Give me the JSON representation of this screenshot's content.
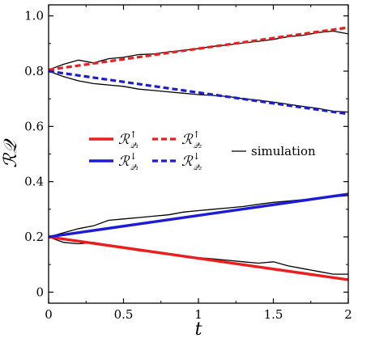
{
  "chart_data": {
    "type": "line",
    "xlabel": "t",
    "ylabel": "ℛ𝒬",
    "xlim": [
      0,
      2
    ],
    "ylim": [
      -0.04,
      1.04
    ],
    "xticks": [
      0,
      0.5,
      1,
      1.5,
      2
    ],
    "xtick_labels": [
      "0",
      "0.5",
      "1",
      "1.5",
      "2"
    ],
    "yticks": [
      0,
      0.2,
      0.4,
      0.6,
      0.8,
      1.0
    ],
    "ytick_labels": [
      "0",
      "0.2",
      "0.4",
      "0.6",
      "0.8",
      "1.0"
    ],
    "grid": false,
    "legend_position": "center-left",
    "series": [
      {
        "id": "r-up-q1",
        "legend_base": "ℛ",
        "legend_sup": "↑",
        "legend_sub": "𝒬₁",
        "color": "#ee1c1c",
        "style": "solid",
        "x": [
          0,
          2
        ],
        "y": [
          0.2,
          0.045
        ]
      },
      {
        "id": "r-up-q2",
        "legend_base": "ℛ",
        "legend_sup": "↑",
        "legend_sub": "𝒬₂",
        "color": "#ee1c1c",
        "style": "dashed",
        "x": [
          0,
          2
        ],
        "y": [
          0.805,
          0.958
        ]
      },
      {
        "id": "r-down-q1",
        "legend_base": "ℛ",
        "legend_sup": "↓",
        "legend_sub": "𝒬₁",
        "color": "#1c1cd6",
        "style": "solid",
        "x": [
          0,
          2
        ],
        "y": [
          0.2,
          0.355
        ]
      },
      {
        "id": "r-down-q2",
        "legend_base": "ℛ",
        "legend_sup": "↓",
        "legend_sub": "𝒬₂",
        "color": "#1c1cd6",
        "style": "dashed",
        "x": [
          0,
          2
        ],
        "y": [
          0.8,
          0.645
        ]
      },
      {
        "id": "simulation",
        "legend_label": "simulation",
        "color": "#000000",
        "style": "thin",
        "paths": [
          {
            "x": [
              0,
              0.1,
              0.2,
              0.3,
              0.4,
              0.5,
              0.6,
              0.7,
              0.8,
              0.9,
              1.0,
              1.1,
              1.2,
              1.3,
              1.4,
              1.5,
              1.6,
              1.7,
              1.8,
              1.9,
              2.0
            ],
            "y": [
              0.805,
              0.825,
              0.84,
              0.83,
              0.845,
              0.85,
              0.86,
              0.862,
              0.87,
              0.875,
              0.882,
              0.89,
              0.895,
              0.902,
              0.908,
              0.915,
              0.925,
              0.93,
              0.94,
              0.945,
              0.935
            ]
          },
          {
            "x": [
              0,
              0.1,
              0.2,
              0.3,
              0.4,
              0.5,
              0.6,
              0.7,
              0.8,
              0.9,
              1.0,
              1.1,
              1.2,
              1.3,
              1.4,
              1.5,
              1.6,
              1.7,
              1.8,
              1.9,
              2.0
            ],
            "y": [
              0.8,
              0.78,
              0.765,
              0.755,
              0.75,
              0.745,
              0.735,
              0.73,
              0.725,
              0.72,
              0.715,
              0.712,
              0.708,
              0.7,
              0.695,
              0.688,
              0.68,
              0.672,
              0.665,
              0.655,
              0.652
            ]
          },
          {
            "x": [
              0,
              0.1,
              0.2,
              0.3,
              0.4,
              0.5,
              0.6,
              0.7,
              0.8,
              0.9,
              1.0,
              1.1,
              1.2,
              1.3,
              1.4,
              1.5,
              1.6,
              1.7,
              1.8,
              1.9,
              2.0
            ],
            "y": [
              0.2,
              0.215,
              0.23,
              0.24,
              0.26,
              0.265,
              0.27,
              0.275,
              0.28,
              0.29,
              0.295,
              0.3,
              0.305,
              0.31,
              0.318,
              0.325,
              0.33,
              0.335,
              0.34,
              0.345,
              0.35
            ]
          },
          {
            "x": [
              0,
              0.1,
              0.2,
              0.3,
              0.4,
              0.5,
              0.6,
              0.7,
              0.8,
              0.9,
              1.0,
              1.1,
              1.2,
              1.3,
              1.4,
              1.5,
              1.6,
              1.7,
              1.8,
              1.9,
              2.0
            ],
            "y": [
              0.2,
              0.18,
              0.175,
              0.18,
              0.17,
              0.16,
              0.15,
              0.145,
              0.14,
              0.13,
              0.125,
              0.12,
              0.115,
              0.11,
              0.105,
              0.11,
              0.095,
              0.085,
              0.075,
              0.065,
              0.065
            ]
          }
        ]
      }
    ]
  }
}
